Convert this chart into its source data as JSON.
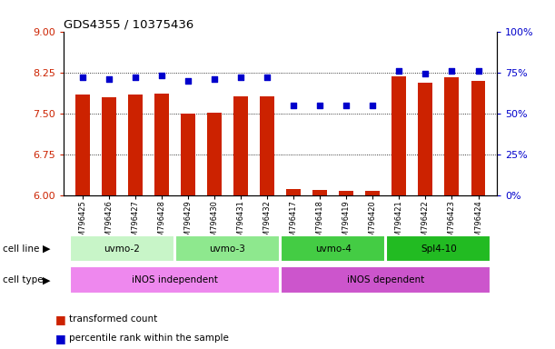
{
  "title": "GDS4355 / 10375436",
  "samples": [
    "GSM796425",
    "GSM796426",
    "GSM796427",
    "GSM796428",
    "GSM796429",
    "GSM796430",
    "GSM796431",
    "GSM796432",
    "GSM796417",
    "GSM796418",
    "GSM796419",
    "GSM796420",
    "GSM796421",
    "GSM796422",
    "GSM796423",
    "GSM796424"
  ],
  "transformed_count": [
    7.85,
    7.8,
    7.84,
    7.86,
    7.5,
    7.52,
    7.81,
    7.82,
    6.12,
    6.1,
    6.08,
    6.09,
    8.17,
    8.07,
    8.16,
    8.09
  ],
  "percentile_rank": [
    72,
    71,
    72,
    73,
    70,
    71,
    72,
    72,
    55,
    55,
    55,
    55,
    76,
    74,
    76,
    76
  ],
  "ylim_left": [
    6,
    9
  ],
  "ylim_right": [
    0,
    100
  ],
  "yticks_left": [
    6,
    6.75,
    7.5,
    8.25,
    9
  ],
  "yticks_right": [
    0,
    25,
    50,
    75,
    100
  ],
  "cell_lines": [
    {
      "label": "uvmo-2",
      "start": 0,
      "end": 4,
      "color": "#c8f5c8"
    },
    {
      "label": "uvmo-3",
      "start": 4,
      "end": 8,
      "color": "#8ee88e"
    },
    {
      "label": "uvmo-4",
      "start": 8,
      "end": 12,
      "color": "#44cc44"
    },
    {
      "label": "Spl4-10",
      "start": 12,
      "end": 16,
      "color": "#22bb22"
    }
  ],
  "cell_types": [
    {
      "label": "iNOS independent",
      "start": 0,
      "end": 8,
      "color": "#ee88ee"
    },
    {
      "label": "iNOS dependent",
      "start": 8,
      "end": 16,
      "color": "#cc55cc"
    }
  ],
  "bar_color": "#cc2200",
  "dot_color": "#0000cc",
  "grid_color": "#000000",
  "tick_color_left": "#cc2200",
  "tick_color_right": "#0000cc",
  "bar_width": 0.55,
  "legend_items": [
    {
      "label": "transformed count",
      "color": "#cc2200"
    },
    {
      "label": "percentile rank within the sample",
      "color": "#0000cc"
    }
  ]
}
